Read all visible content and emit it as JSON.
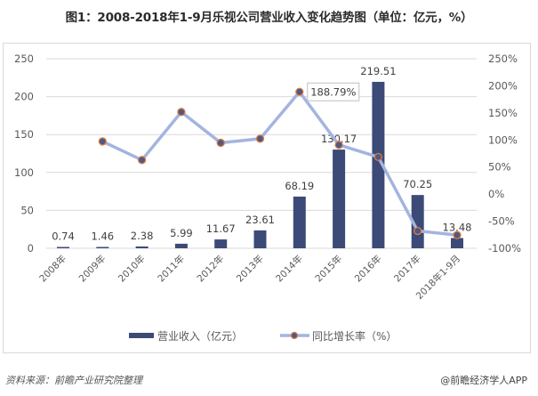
{
  "title": "图1：2008-2018年1-9月乐视公司营业收入变化趋势图（单位：亿元，%）",
  "footer": {
    "source": "资料来源：前瞻产业研究院整理",
    "credit": "@前瞻经济学人APP"
  },
  "colors": {
    "bar": "#3c4a78",
    "line": "#a3b4e0",
    "marker_fill": "#4a5a8a",
    "marker_stroke": "#e07b39",
    "grid": "#d9d9d9",
    "axis_text": "#595959"
  },
  "chart_data": {
    "type": "bar+line",
    "title": "图1：2008-2018年1-9月乐视公司营业收入变化趋势图（单位：亿元，%）",
    "categories": [
      "2008年",
      "2009年",
      "2010年",
      "2011年",
      "2012年",
      "2013年",
      "2014年",
      "2015年",
      "2016年",
      "2017年",
      "2018年1-9月"
    ],
    "series": [
      {
        "name": "营业收入（亿元）",
        "type": "bar",
        "axis": "left",
        "values": [
          0.74,
          1.46,
          2.38,
          5.99,
          11.67,
          23.61,
          68.19,
          130.17,
          219.51,
          70.25,
          13.48
        ],
        "labels": [
          "0.74",
          "1.46",
          "2.38",
          "5.99",
          "11.67",
          "23.61",
          "68.19",
          "130.17",
          "219.51",
          "70.25",
          "13.48"
        ]
      },
      {
        "name": "同比增长率（%）",
        "type": "line",
        "axis": "right",
        "values": [
          null,
          97.3,
          63.0,
          151.7,
          94.8,
          102.3,
          188.79,
          90.9,
          68.6,
          -68.0,
          -75.5
        ],
        "annotation": {
          "index": 6,
          "text": "188.79%"
        }
      }
    ],
    "left_axis": {
      "min": 0,
      "max": 250,
      "step": 50,
      "ticks": [
        "0",
        "50",
        "100",
        "150",
        "200",
        "250"
      ]
    },
    "right_axis": {
      "min": -100,
      "max": 250,
      "step": 50,
      "ticks": [
        "-100%",
        "-50%",
        "0%",
        "50%",
        "100%",
        "150%",
        "200%",
        "250%"
      ]
    },
    "grid": true,
    "legend_position": "bottom",
    "legend": [
      "营业收入（亿元）",
      "同比增长率（%）"
    ]
  }
}
